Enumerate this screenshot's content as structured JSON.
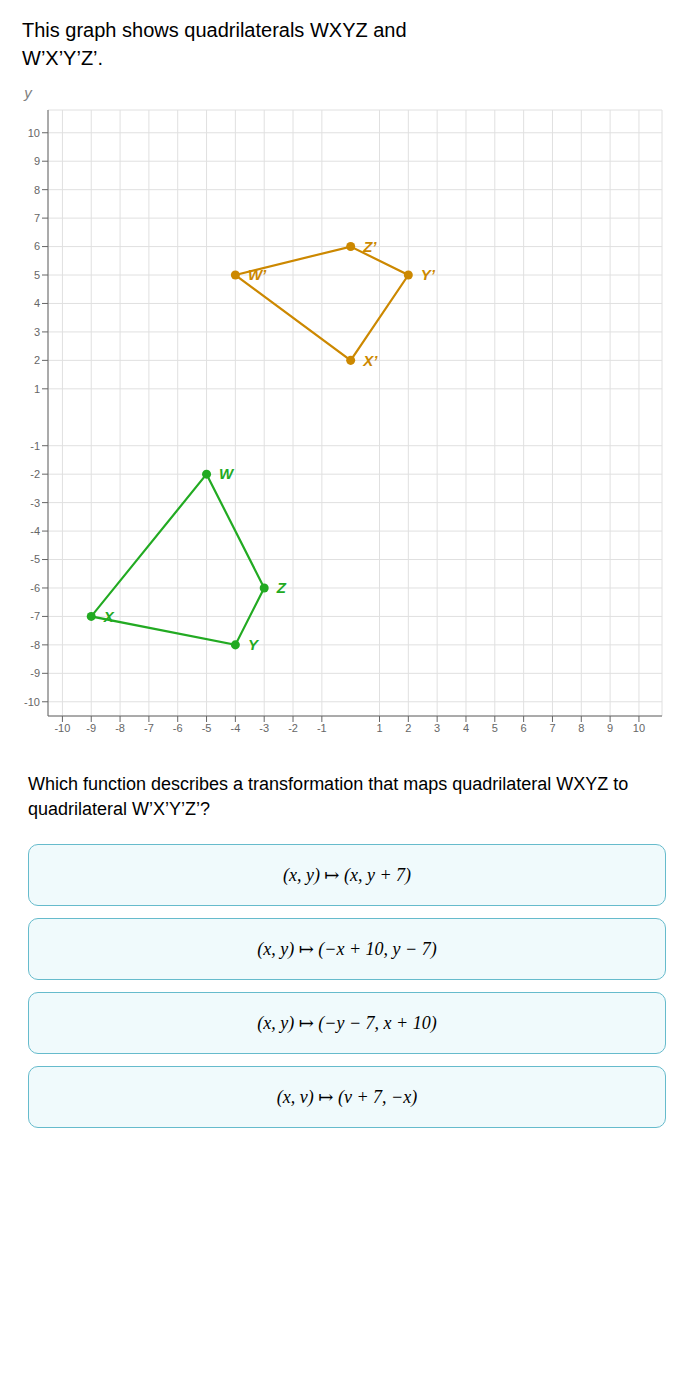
{
  "chart_data": {
    "type": "scatter",
    "title": "This graph shows quadrilaterals WXYZ and W’X’Y’Z’.",
    "ylabel": "y",
    "xlim": [
      -10.5,
      10.8
    ],
    "ylim": [
      -10.5,
      10.8
    ],
    "xticks": [
      -10,
      -9,
      -8,
      -7,
      -6,
      -5,
      -4,
      -3,
      -2,
      -1,
      1,
      2,
      3,
      4,
      5,
      6,
      7,
      8,
      9,
      10
    ],
    "yticks": [
      -10,
      -9,
      -8,
      -7,
      -6,
      -5,
      -4,
      -3,
      -2,
      -1,
      1,
      2,
      3,
      4,
      5,
      6,
      7,
      8,
      9,
      10
    ],
    "grid": true,
    "line_style": "solid",
    "series": [
      {
        "name": "WXYZ",
        "color": "#22aa22",
        "x": [
          -5,
          -9,
          -4,
          -3
        ],
        "values": [
          -2,
          -7,
          -8,
          -6
        ],
        "labels": [
          "W",
          "X",
          "Y",
          "Z"
        ]
      },
      {
        "name": "W’X’Y’Z’",
        "color": "#cc8800",
        "x": [
          -4,
          0,
          2,
          0
        ],
        "values": [
          5,
          6,
          5,
          2
        ],
        "labels": [
          "W’",
          "Z’",
          "Y’",
          "X’"
        ]
      }
    ],
    "annotations": [
      "Which function describes a transformation that maps quadrilateral WXYZ to quadrilateral W’X’Y’Z’?",
      "(x, y) ↦ (x, y + 7)",
      "(x, y) ↦ (−x + 10, y − 7)",
      "(x, y) ↦ (−y − 7, x + 10)",
      "(x, v) ↦ (v + 7, −x)"
    ]
  }
}
